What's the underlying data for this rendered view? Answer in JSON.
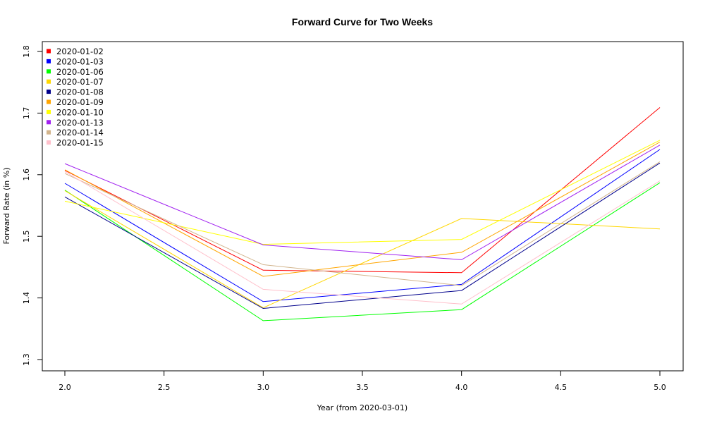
{
  "chart_data": {
    "type": "line",
    "title": "Forward Curve for Two Weeks",
    "xlabel": "Year (from 2020-03-01)",
    "ylabel": "Forward Rate (in %)",
    "xlim": [
      2.0,
      5.0
    ],
    "ylim": [
      1.3,
      1.8
    ],
    "xticks": [
      "2.0",
      "2.5",
      "3.0",
      "3.5",
      "4.0",
      "4.5",
      "5.0"
    ],
    "yticks": [
      "1.3",
      "1.4",
      "1.5",
      "1.6",
      "1.7",
      "1.8"
    ],
    "grid": false,
    "legend_position": "top-left",
    "x": [
      2.0,
      3.0,
      4.0,
      5.0
    ],
    "series": [
      {
        "name": "2020-01-02",
        "color": "#ff0000",
        "values": [
          1.607,
          1.445,
          1.441,
          1.709
        ]
      },
      {
        "name": "2020-01-03",
        "color": "#0000ff",
        "values": [
          1.586,
          1.394,
          1.422,
          1.641
        ]
      },
      {
        "name": "2020-01-06",
        "color": "#00ff00",
        "values": [
          1.575,
          1.363,
          1.381,
          1.587
        ]
      },
      {
        "name": "2020-01-07",
        "color": "#ffd700",
        "values": [
          1.574,
          1.384,
          1.529,
          1.512
        ]
      },
      {
        "name": "2020-01-08",
        "color": "#00008b",
        "values": [
          1.564,
          1.383,
          1.412,
          1.619
        ]
      },
      {
        "name": "2020-01-09",
        "color": "#ffa500",
        "values": [
          1.608,
          1.435,
          1.474,
          1.653
        ]
      },
      {
        "name": "2020-01-10",
        "color": "#ffff00",
        "values": [
          1.557,
          1.487,
          1.495,
          1.656
        ]
      },
      {
        "name": "2020-01-13",
        "color": "#a020f0",
        "values": [
          1.618,
          1.486,
          1.462,
          1.648
        ]
      },
      {
        "name": "2020-01-14",
        "color": "#d2b48c",
        "values": [
          1.602,
          1.454,
          1.42,
          1.621
        ]
      },
      {
        "name": "2020-01-15",
        "color": "#ffc0cb",
        "values": [
          1.605,
          1.414,
          1.39,
          1.59
        ]
      }
    ]
  }
}
